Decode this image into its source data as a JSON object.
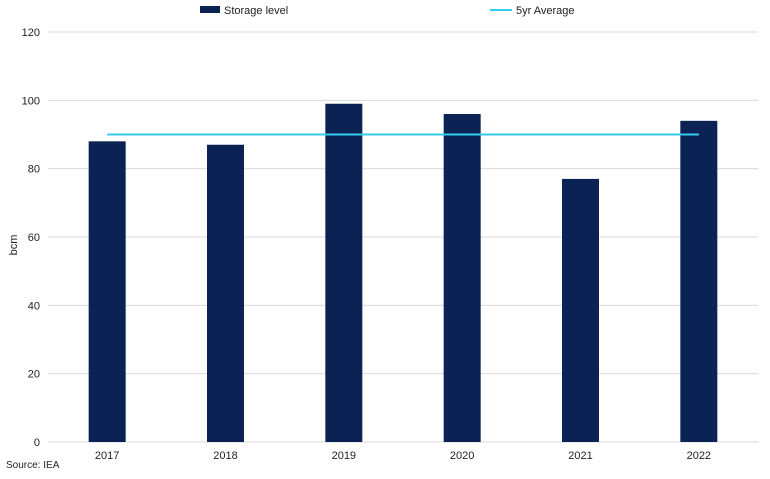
{
  "colors": {
    "bar": "#0b2354",
    "average_line": "#33ccf0",
    "grid": "#d9d9d9"
  },
  "source": "Source: IEA",
  "chart_data": {
    "type": "bar",
    "categories": [
      "2017",
      "2018",
      "2019",
      "2020",
      "2021",
      "2022"
    ],
    "series": [
      {
        "name": "Storage level",
        "type": "bar",
        "values": [
          88,
          87,
          99,
          96,
          77,
          94
        ]
      },
      {
        "name": "5yr Average",
        "type": "line",
        "values": [
          90,
          90,
          90,
          90,
          90,
          90
        ]
      }
    ],
    "ylabel": "bcm",
    "ylim": [
      0,
      120
    ],
    "yticks": [
      0,
      20,
      40,
      60,
      80,
      100,
      120
    ],
    "grid": true,
    "legend_position": "top"
  }
}
